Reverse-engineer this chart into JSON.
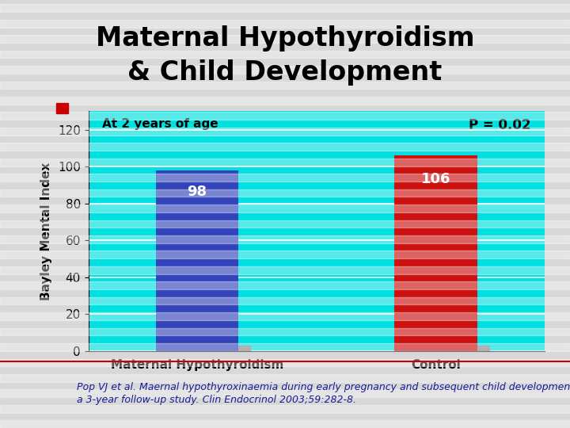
{
  "title_line1": "Maternal Hypothyroidism",
  "title_line2": "& Child Development",
  "categories": [
    "Maternal Hypothyroidism",
    "Control"
  ],
  "values": [
    98,
    106
  ],
  "bar_colors": [
    "#3344bb",
    "#cc1111"
  ],
  "bar_shadow_color": "#888888",
  "ylabel": "Bayley Mental Index",
  "ylim": [
    0,
    130
  ],
  "yticks": [
    0,
    20,
    40,
    60,
    80,
    100,
    120
  ],
  "annotation_left": "At 2 years of age",
  "annotation_right": "P = 0.02",
  "footnote_line1": "Pop VJ et al. Maernal hypothyroxinaemia during early pregnancy and subsequent child development:",
  "footnote_line2": "a 3-year follow-up study. Clin Endocrinol 2003;59:282-8.",
  "bg_color": "#00e0e0",
  "outer_bg": "#d8d8d8",
  "stripe_color": "#cccccc",
  "title_fontsize": 24,
  "bar_label_fontsize": 13,
  "axis_label_fontsize": 11,
  "tick_label_fontsize": 11,
  "annotation_fontsize": 11,
  "footnote_fontsize": 9,
  "red_square_color": "#cc0000"
}
